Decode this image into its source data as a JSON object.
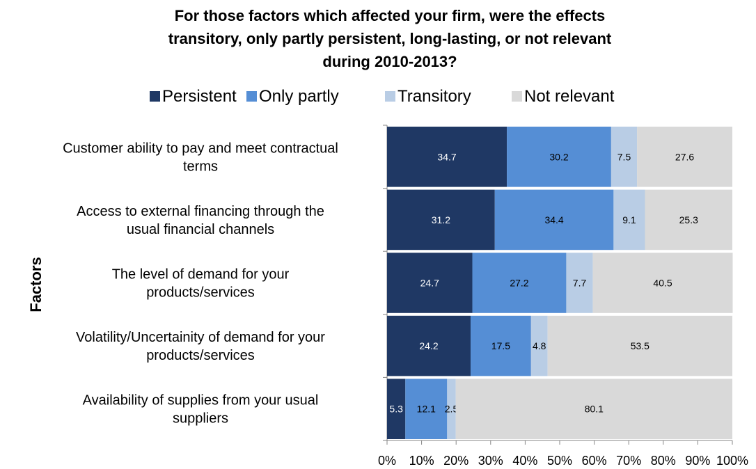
{
  "chart_data": {
    "type": "bar",
    "orientation": "horizontal",
    "stacked": true,
    "title_lines": [
      "For those factors which affected your firm, were the effects",
      "transitory, only partly persistent, long-lasting, or not relevant",
      "during 2010-2013?"
    ],
    "ylabel": "Factors",
    "xlabel": "",
    "xlim": [
      0,
      100
    ],
    "x_ticks": [
      "0%",
      "10%",
      "20%",
      "30%",
      "40%",
      "50%",
      "60%",
      "70%",
      "80%",
      "90%",
      "100%"
    ],
    "legend_position": "top",
    "categories": [
      [
        "Customer ability to pay and meet contractual",
        "terms"
      ],
      [
        "Access to external financing through the",
        "usual financial channels"
      ],
      [
        "The level of demand for your",
        "products/services"
      ],
      [
        "Volatility/Uncertainity of demand for your",
        "products/services"
      ],
      [
        "Availability of supplies from your usual",
        "suppliers"
      ]
    ],
    "series": [
      {
        "name": "Persistent",
        "color": "#1f3864",
        "label_color": "#ffffff",
        "values": [
          34.7,
          31.2,
          24.7,
          24.2,
          5.3
        ]
      },
      {
        "name": "Only partly",
        "color": "#558ed5",
        "label_color": "#000000",
        "values": [
          30.2,
          34.4,
          27.2,
          17.5,
          12.1
        ]
      },
      {
        "name": "Transitory",
        "color": "#b9cde5",
        "label_color": "#000000",
        "values": [
          7.5,
          9.1,
          7.7,
          4.8,
          2.5
        ]
      },
      {
        "name": "Not relevant",
        "color": "#d9d9d9",
        "label_color": "#000000",
        "values": [
          27.6,
          25.3,
          40.5,
          53.5,
          80.1
        ]
      }
    ]
  }
}
